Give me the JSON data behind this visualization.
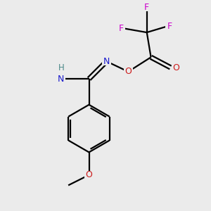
{
  "background_color": "#ebebeb",
  "atom_colors": {
    "C": "#000000",
    "H": "#4a8888",
    "N": "#1a1acc",
    "O": "#cc1a1a",
    "F": "#cc00cc"
  },
  "bond_color": "#000000",
  "figsize": [
    3.0,
    3.0
  ],
  "dpi": 100
}
